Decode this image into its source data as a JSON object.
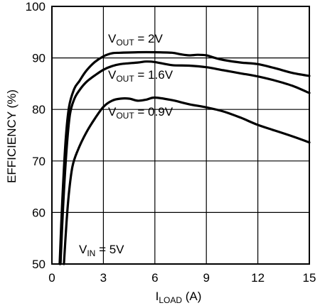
{
  "chart_data": {
    "type": "line",
    "xlabel": {
      "main": "I",
      "sub": "LOAD",
      "unit": " (A)"
    },
    "ylabel": "EFFICIENCY (%)",
    "xlim": [
      0,
      15
    ],
    "ylim": [
      50,
      100
    ],
    "xticks": [
      0,
      3,
      6,
      9,
      12,
      15
    ],
    "yticks": [
      50,
      60,
      70,
      80,
      90,
      100
    ],
    "grid": true,
    "annotation": {
      "main": "V",
      "sub": "IN",
      "rest": " = 5V"
    },
    "series": [
      {
        "label_main": "V",
        "label_sub": "OUT",
        "label_rest": " = 2V",
        "x": [
          0.45,
          0.6,
          0.8,
          1.0,
          1.3,
          1.6,
          2.0,
          2.5,
          3.0,
          3.5,
          4.0,
          5.0,
          6.0,
          7.0,
          7.5,
          8.0,
          8.5,
          9.0,
          9.5,
          10.0,
          11.0,
          12.0,
          13.0,
          14.0,
          15.0
        ],
        "y": [
          50.0,
          62.0,
          74.0,
          80.5,
          84.0,
          85.5,
          87.5,
          89.2,
          90.3,
          90.9,
          91.0,
          91.1,
          91.1,
          91.0,
          90.7,
          90.5,
          90.6,
          90.5,
          90.0,
          89.6,
          89.1,
          88.8,
          88.0,
          87.1,
          86.5
        ]
      },
      {
        "label_main": "V",
        "label_sub": "OUT",
        "label_rest": " = 1.6V",
        "x": [
          0.5,
          0.65,
          0.85,
          1.05,
          1.3,
          1.6,
          2.0,
          2.5,
          3.0,
          3.5,
          4.0,
          5.0,
          5.5,
          6.0,
          7.0,
          8.0,
          9.0,
          10.0,
          11.0,
          12.0,
          13.0,
          14.0,
          15.0
        ],
        "y": [
          50.0,
          61.0,
          72.0,
          79.0,
          82.0,
          83.7,
          85.3,
          86.6,
          87.7,
          88.4,
          88.8,
          89.1,
          89.3,
          89.2,
          88.6,
          88.5,
          88.2,
          87.6,
          87.0,
          86.4,
          85.6,
          84.6,
          83.2
        ]
      },
      {
        "label_main": "V",
        "label_sub": "OUT",
        "label_rest": " = 0.9V",
        "x": [
          0.7,
          0.85,
          1.0,
          1.2,
          1.5,
          2.0,
          2.5,
          3.0,
          3.5,
          4.0,
          4.5,
          5.0,
          5.5,
          6.0,
          7.0,
          8.0,
          9.0,
          10.0,
          11.0,
          12.0,
          13.0,
          14.0,
          15.0
        ],
        "y": [
          50.0,
          58.0,
          64.0,
          69.0,
          72.0,
          75.5,
          78.2,
          80.5,
          81.7,
          82.1,
          82.1,
          81.7,
          81.9,
          82.3,
          81.8,
          81.0,
          80.4,
          79.6,
          78.4,
          77.0,
          75.9,
          74.8,
          73.6
        ]
      }
    ]
  }
}
